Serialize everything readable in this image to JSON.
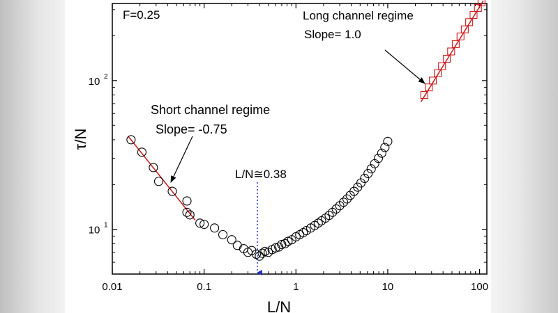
{
  "chart_data": {
    "type": "scatter",
    "xscale": "log",
    "yscale": "log",
    "xlim": [
      0.01,
      120
    ],
    "ylim": [
      5,
      330
    ],
    "xlabel": "L/N",
    "ylabel": "τ/N",
    "x_ticks": [
      {
        "value": 0.01,
        "label": "0.01"
      },
      {
        "value": 0.1,
        "label": "0.1"
      },
      {
        "value": 1,
        "label": "1"
      },
      {
        "value": 10,
        "label": "10"
      },
      {
        "value": 100,
        "label": "100"
      }
    ],
    "y_ticks": [
      {
        "value": 10,
        "base": "10",
        "exp": "1"
      },
      {
        "value": 100,
        "base": "10",
        "exp": "2"
      }
    ],
    "param_label": "F=0.25",
    "series": [
      {
        "marker": "circle",
        "color": "#000000",
        "points": [
          [
            0.016,
            40
          ],
          [
            0.021,
            33
          ],
          [
            0.028,
            26
          ],
          [
            0.032,
            21
          ],
          [
            0.045,
            18
          ],
          [
            0.065,
            15.5
          ],
          [
            0.065,
            13
          ],
          [
            0.07,
            12.5
          ],
          [
            0.09,
            11
          ],
          [
            0.1,
            10.8
          ],
          [
            0.13,
            10.2
          ],
          [
            0.16,
            9.2
          ],
          [
            0.2,
            8.5
          ],
          [
            0.23,
            7.8
          ],
          [
            0.27,
            7.4
          ],
          [
            0.3,
            7.0
          ],
          [
            0.33,
            7.2
          ],
          [
            0.37,
            6.8
          ],
          [
            0.4,
            6.6
          ],
          [
            0.43,
            6.9
          ],
          [
            0.46,
            7.1
          ],
          [
            0.5,
            7.0
          ],
          [
            0.55,
            7.3
          ],
          [
            0.6,
            7.5
          ],
          [
            0.65,
            7.6
          ],
          [
            0.7,
            7.9
          ],
          [
            0.76,
            8.0
          ],
          [
            0.82,
            8.3
          ],
          [
            0.9,
            8.5
          ],
          [
            1.0,
            8.9
          ],
          [
            1.1,
            9.2
          ],
          [
            1.2,
            9.5
          ],
          [
            1.3,
            9.8
          ],
          [
            1.45,
            10.2
          ],
          [
            1.6,
            10.6
          ],
          [
            1.75,
            11.0
          ],
          [
            1.9,
            11.4
          ],
          [
            2.1,
            11.9
          ],
          [
            2.3,
            12.4
          ],
          [
            2.5,
            13.0
          ],
          [
            2.75,
            13.7
          ],
          [
            3.0,
            14.4
          ],
          [
            3.3,
            15.2
          ],
          [
            3.6,
            16.0
          ],
          [
            3.9,
            16.9
          ],
          [
            4.3,
            18.0
          ],
          [
            4.7,
            19.2
          ],
          [
            5.1,
            20.5
          ],
          [
            5.6,
            22.0
          ],
          [
            6.1,
            23.7
          ],
          [
            6.6,
            25.5
          ],
          [
            7.2,
            27.6
          ],
          [
            7.9,
            30.0
          ],
          [
            8.6,
            32.5
          ],
          [
            9.3,
            35.5
          ],
          [
            10.0,
            39.0
          ]
        ]
      },
      {
        "marker": "square",
        "color": "#d02020",
        "points": [
          [
            25,
            80
          ],
          [
            28,
            90
          ],
          [
            31,
            100
          ],
          [
            35,
            112
          ],
          [
            39,
            125
          ],
          [
            44,
            140
          ],
          [
            49,
            157
          ],
          [
            55,
            176
          ],
          [
            62,
            198
          ],
          [
            69,
            221
          ],
          [
            77,
            247
          ],
          [
            86,
            276
          ],
          [
            96,
            308
          ],
          [
            105,
            336
          ]
        ]
      }
    ],
    "fit_lines": [
      {
        "slope": -0.75,
        "from": [
          0.015,
          42
        ],
        "to": [
          0.08,
          11.5
        ],
        "color": "#d02020"
      },
      {
        "slope": 1.0,
        "from": [
          23,
          72
        ],
        "to": [
          110,
          345
        ],
        "color": "#d02020"
      }
    ],
    "annotations": [
      {
        "id": "short",
        "line1": "Short channel regime",
        "line2": "Slope= -0.75"
      },
      {
        "id": "long",
        "line1": "Long channel regime",
        "line2": "Slope= 1.0"
      },
      {
        "id": "min",
        "text": "L/N≅0.38",
        "x": 0.38
      }
    ]
  }
}
